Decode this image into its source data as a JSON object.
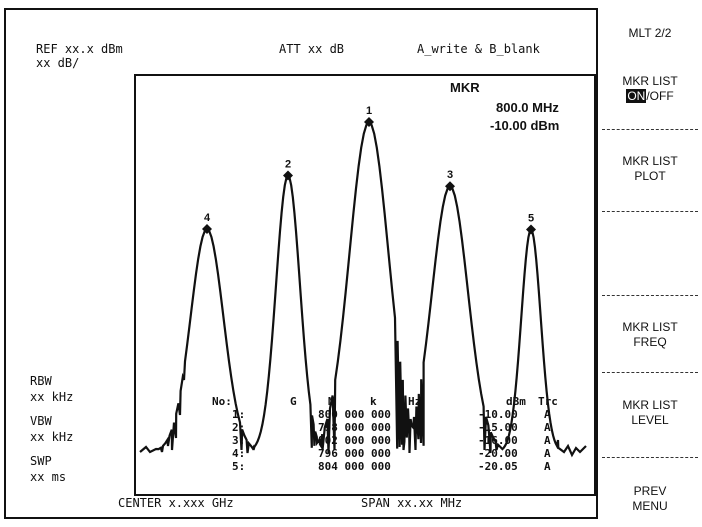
{
  "header": {
    "ref": "REF xx.x dBm",
    "scale": "xx dB/",
    "att": "ATT xx dB",
    "trace_mode": "A_write & B_blank"
  },
  "marker_readout": {
    "label": "MKR",
    "freq": "800.0 MHz",
    "level": "-10.00 dBm"
  },
  "left_params": {
    "rbw_label": "RBW",
    "rbw_value": "xx kHz",
    "vbw_label": "VBW",
    "vbw_value": "xx kHz",
    "swp_label": "SWP",
    "swp_value": "xx ms"
  },
  "footer": {
    "center": "CENTER x.xxx GHz",
    "span": "SPAN xx.xx MHz"
  },
  "marker_list": {
    "headers": [
      "No:",
      "G",
      "M",
      "k",
      "Hz",
      "dBm",
      "Trc"
    ],
    "rows": [
      {
        "no": "1:",
        "freq": "800 000 000",
        "level": "-10.00",
        "trc": "A"
      },
      {
        "no": "2:",
        "freq": "798 000 000",
        "level": "-15.00",
        "trc": "A"
      },
      {
        "no": "3:",
        "freq": "802 000 000",
        "level": "-16.00",
        "trc": "A"
      },
      {
        "no": "4:",
        "freq": "796 000 000",
        "level": "-20.00",
        "trc": "A"
      },
      {
        "no": "5:",
        "freq": "804 000 000",
        "level": "-20.05",
        "trc": "A"
      }
    ]
  },
  "markers": [
    {
      "label": "1",
      "freq_mhz": 800,
      "level_dbm": -10.0
    },
    {
      "label": "2",
      "freq_mhz": 798,
      "level_dbm": -15.0
    },
    {
      "label": "3",
      "freq_mhz": 802,
      "level_dbm": -16.0
    },
    {
      "label": "4",
      "freq_mhz": 796,
      "level_dbm": -20.0
    },
    {
      "label": "5",
      "freq_mhz": 804,
      "level_dbm": -20.05
    }
  ],
  "softkeys": {
    "title": "MLT 2/2",
    "mkr_list_onoff_line1": "MKR LIST",
    "mkr_list_on": "ON",
    "mkr_list_off": "/OFF",
    "mkr_list_plot_line1": "MKR LIST",
    "mkr_list_plot_line2": "PLOT",
    "mkr_list_freq_line1": "MKR LIST",
    "mkr_list_freq_line2": "FREQ",
    "mkr_list_level_line1": "MKR LIST",
    "mkr_list_level_line2": "LEVEL",
    "prev_menu_line1": "PREV",
    "prev_menu_line2": "MENU"
  }
}
